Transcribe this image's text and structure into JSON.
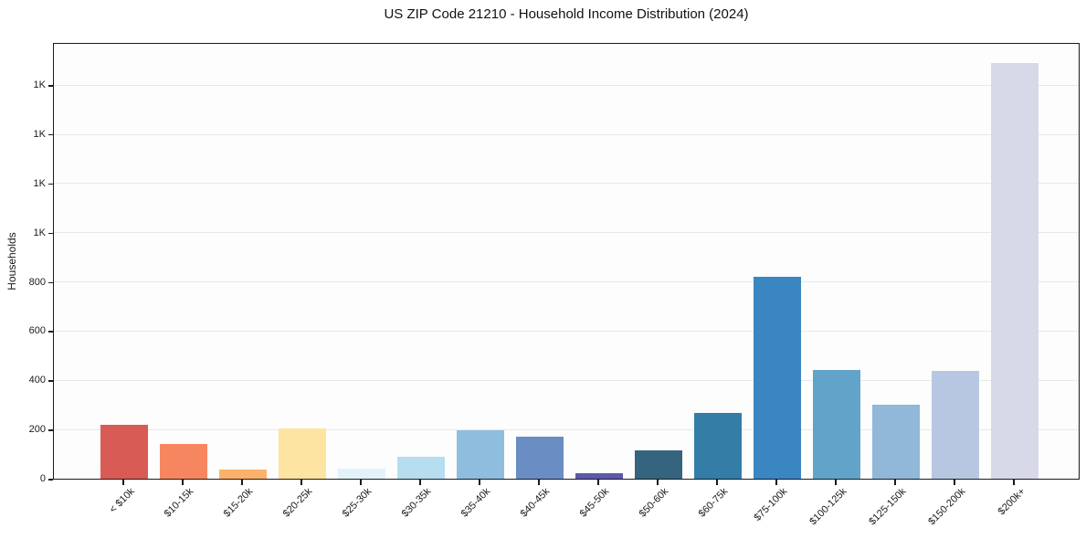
{
  "chart_data": {
    "type": "bar",
    "title": "US ZIP Code 21210 - Household Income Distribution (2024)",
    "ylabel": "Households",
    "xlabel": "",
    "categories": [
      "< $10k",
      "$10-15k",
      "$15-20k",
      "$20-25k",
      "$25-30k",
      "$30-35k",
      "$35-40k",
      "$40-45k",
      "$45-50k",
      "$50-60k",
      "$60-75k",
      "$75-100k",
      "$100-125k",
      "$125-150k",
      "$150-200k",
      "$200k+"
    ],
    "values": [
      221,
      140,
      38,
      204,
      40,
      88,
      196,
      170,
      22,
      114,
      266,
      820,
      441,
      300,
      437,
      1688
    ],
    "bar_colors": [
      "#d85c55",
      "#f68660",
      "#fbb16c",
      "#fde4a0",
      "#e3f2f8",
      "#b6def0",
      "#8fbddd",
      "#6a8dc3",
      "#5b59a8",
      "#35647e",
      "#337da6",
      "#3a86c0",
      "#62a3c9",
      "#91b7d9",
      "#b8c7e1",
      "#d8d9e8"
    ],
    "ylim": [
      0,
      1775
    ],
    "yticks": [
      {
        "value": 0,
        "label": "0"
      },
      {
        "value": 200,
        "label": "200"
      },
      {
        "value": 400,
        "label": "400"
      },
      {
        "value": 600,
        "label": "600"
      },
      {
        "value": 800,
        "label": "800"
      },
      {
        "value": 1000,
        "label": "1K"
      },
      {
        "value": 1200,
        "label": "1K"
      },
      {
        "value": 1400,
        "label": "1K"
      },
      {
        "value": 1600,
        "label": "1K"
      }
    ],
    "grid": "horizontal",
    "legend_position": "none",
    "x_tick_rotation_deg": 45
  },
  "colors": {
    "axis": "#1a1a1a",
    "grid": "#e8e8ea",
    "text": "#1a1a1a",
    "plot_background": "#fdfdfd",
    "figure_background": "#ffffff"
  }
}
